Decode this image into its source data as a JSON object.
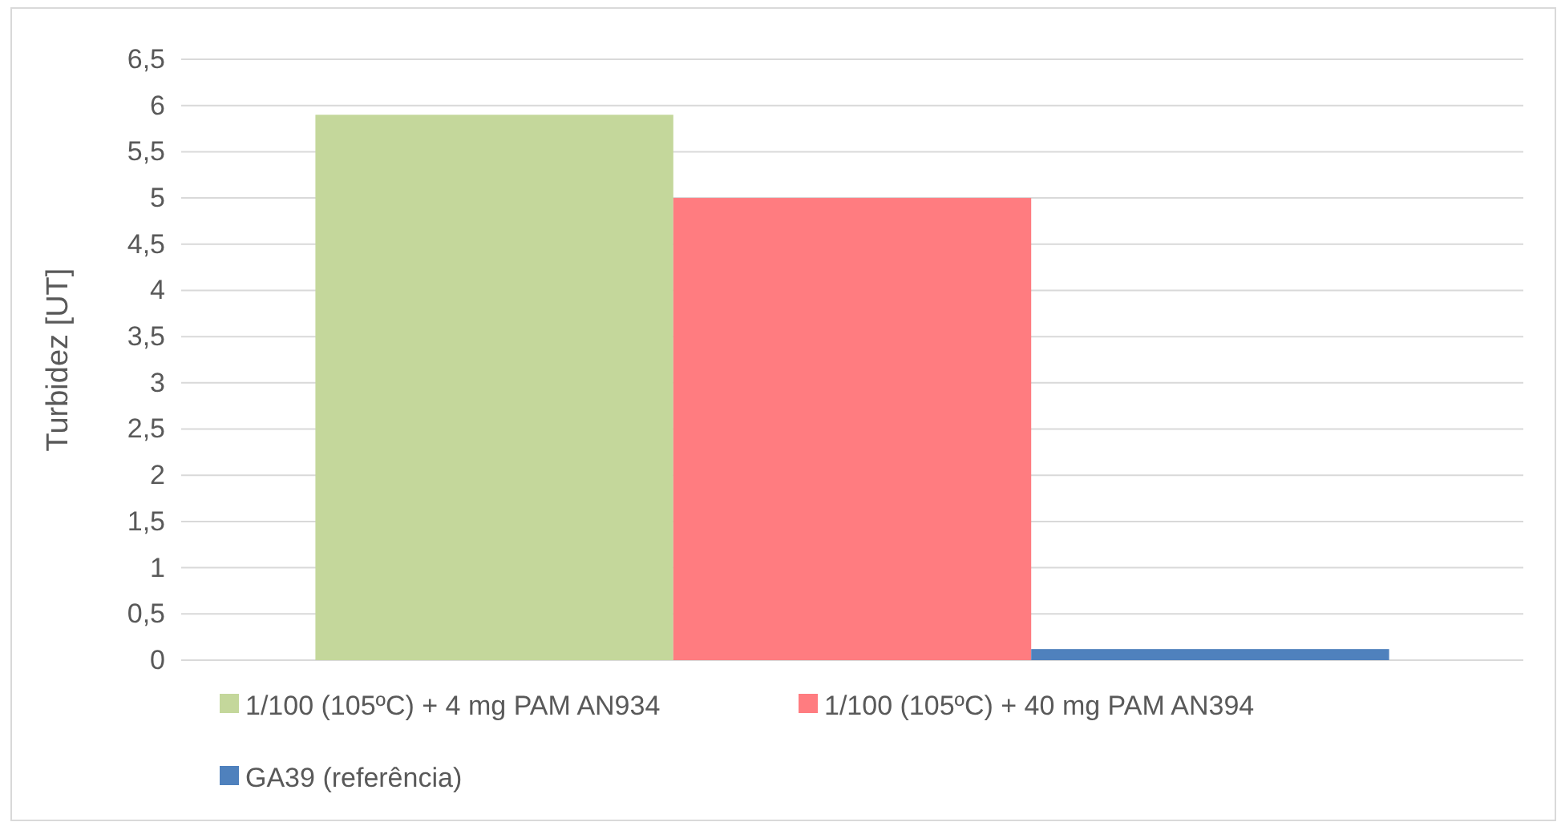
{
  "chart_data": {
    "type": "bar",
    "ylabel": "Turbidez [UT]",
    "categories": [
      null
    ],
    "series": [
      {
        "name": "1/100 (105ºC) + 4 mg  PAM AN934",
        "color": "#c4d79b",
        "values": [
          5.9
        ]
      },
      {
        "name": "1/100 (105ºC) + 40 mg PAM AN394",
        "color": "#ff7c80",
        "values": [
          5.0
        ]
      },
      {
        "name": "GA39 (referência)",
        "color": "#4f81bd",
        "values": [
          0.12
        ]
      }
    ],
    "ylim": [
      0,
      6.5
    ],
    "yticks": [
      0,
      {
        "value": 0.5,
        "label": "0,5"
      },
      1,
      {
        "value": 1.5,
        "label": "1,5"
      },
      2,
      {
        "value": 2.5,
        "label": "2,5"
      },
      3,
      {
        "value": 3.5,
        "label": "3,5"
      },
      4,
      {
        "value": 4.5,
        "label": "4,5"
      },
      5,
      {
        "value": 5.5,
        "label": "5,5"
      },
      6,
      {
        "value": 6.5,
        "label": "6,5"
      }
    ],
    "grid": "y",
    "legend": "bottom"
  }
}
